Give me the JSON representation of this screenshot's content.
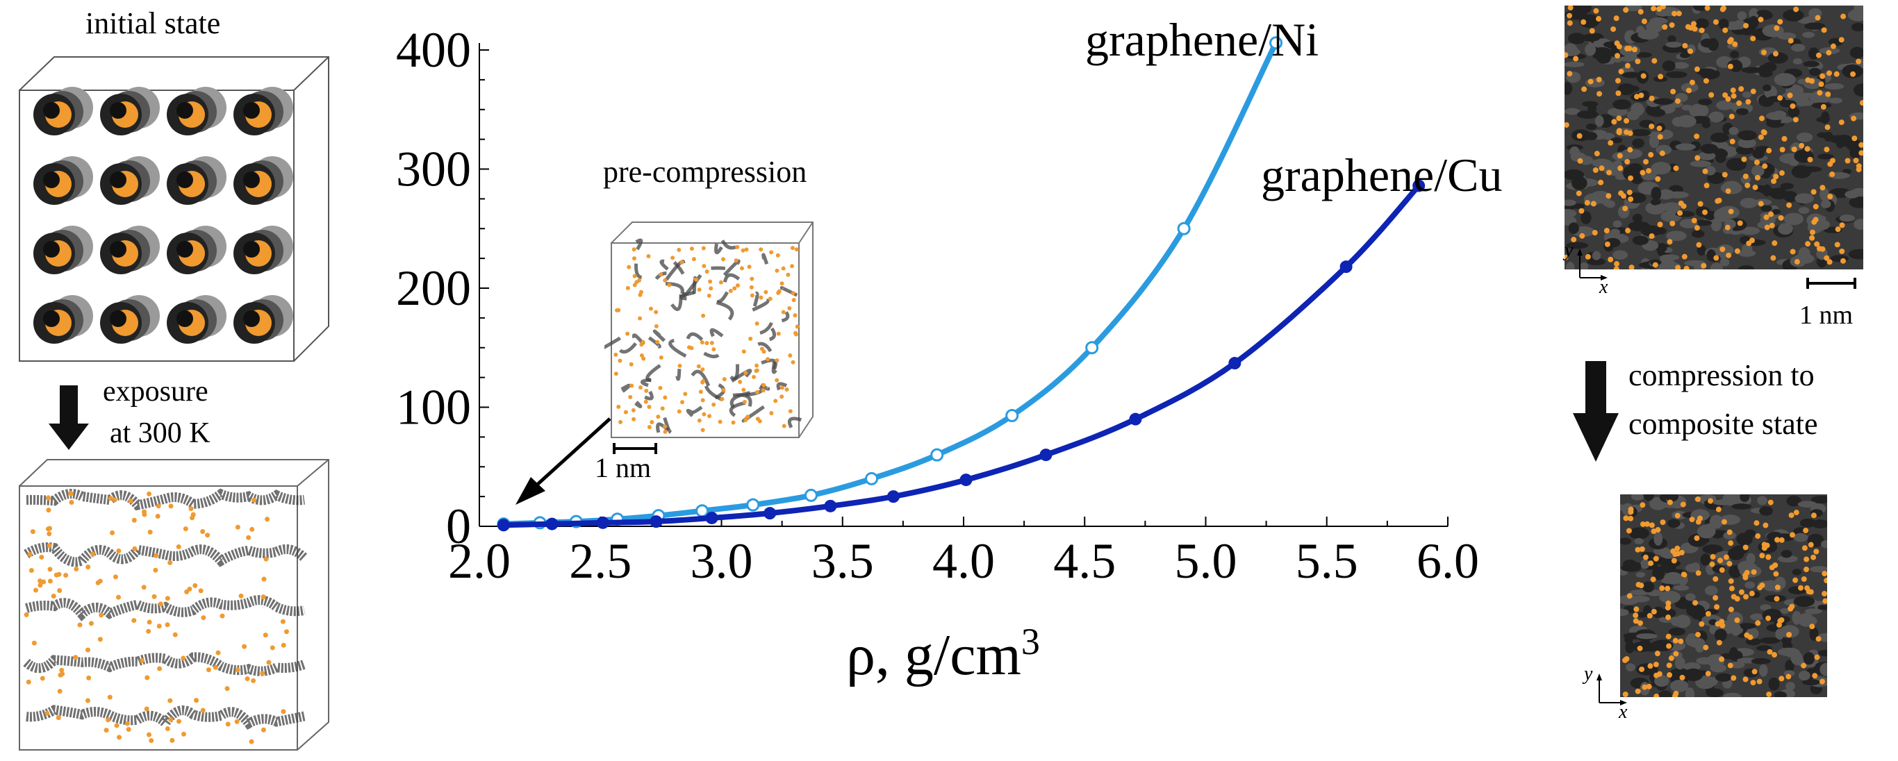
{
  "left_panel": {
    "initial_label": "initial state",
    "exposure_label_line1": "exposure",
    "exposure_label_line2": "at 300 K"
  },
  "inset": {
    "label": "pre-compression",
    "scale_label": "1 nm"
  },
  "right_panel": {
    "scale_label_top": "1 nm",
    "compression_line1": "compression to",
    "compression_line2": "composite state",
    "axis_x": "x",
    "axis_y": "y"
  },
  "colors": {
    "series_ni": "#2b9be0",
    "series_cu": "#0d24b4",
    "atom_orange": "#f09a30",
    "carbon_dark": "#2c2c2c"
  },
  "chart_data": {
    "type": "line",
    "xlabel": "ρ, g/cm",
    "xlabel_sup": "3",
    "ylabel": "",
    "xlim": [
      2.0,
      6.0
    ],
    "ylim": [
      0,
      400
    ],
    "xticks": [
      "2.0",
      "2.5",
      "3.0",
      "3.5",
      "4.0",
      "4.5",
      "5.0",
      "5.5",
      "6.0"
    ],
    "yticks": [
      "0",
      "100",
      "200",
      "300",
      "400"
    ],
    "series": [
      {
        "name": "graphene/Ni",
        "marker": "open-circle",
        "x": [
          2.1,
          2.25,
          2.4,
          2.57,
          2.74,
          2.92,
          3.13,
          3.37,
          3.62,
          3.89,
          4.2,
          4.53,
          4.91,
          5.29
        ],
        "y": [
          2,
          3,
          4,
          6,
          9,
          13,
          18,
          26,
          40,
          60,
          93,
          150,
          250,
          406
        ]
      },
      {
        "name": "graphene/Cu",
        "marker": "filled-circle",
        "x": [
          2.1,
          2.3,
          2.51,
          2.73,
          2.96,
          3.2,
          3.45,
          3.71,
          4.01,
          4.34,
          4.71,
          5.12,
          5.58,
          5.88
        ],
        "y": [
          1,
          2,
          3,
          4,
          7,
          11,
          17,
          25,
          39,
          60,
          90,
          137,
          218,
          286
        ]
      }
    ]
  }
}
